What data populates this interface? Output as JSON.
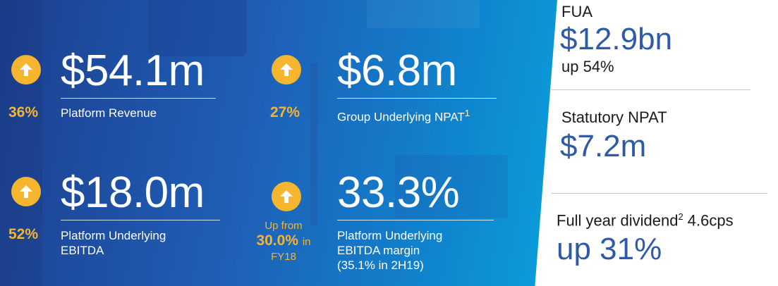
{
  "metrics": [
    {
      "value": "$54.1m",
      "change": "36%",
      "label": "Platform Revenue"
    },
    {
      "value": "$6.8m",
      "change": "27%",
      "label": "Group Underlying NPAT",
      "label_sup": "1"
    },
    {
      "value": "$18.0m",
      "change": "52%",
      "label_line1": "Platform Underlying",
      "label_line2": "EBITDA"
    },
    {
      "value": "33.3%",
      "change_prefix": "Up from",
      "change_value": "30.0%",
      "change_in": "in",
      "change_suffix": "FY18",
      "label_line1": "Platform Underlying",
      "label_line2": "EBITDA margin",
      "label_line3": "(35.1% in 2H19)"
    }
  ],
  "sidebar": {
    "fua": {
      "label": "FUA",
      "value": "$12.9bn",
      "sub": "up 54%"
    },
    "npat": {
      "label": "Statutory NPAT",
      "value": "$7.2m"
    },
    "dividend": {
      "label": "Full year dividend",
      "label_sup": "2",
      "label_tail": " 4.6cps",
      "value": "up 31%"
    }
  },
  "colors": {
    "accent": "#f5b52e",
    "blue_text": "#2f5aa8"
  },
  "icons": {
    "up_arrow": "up-arrow-icon"
  }
}
